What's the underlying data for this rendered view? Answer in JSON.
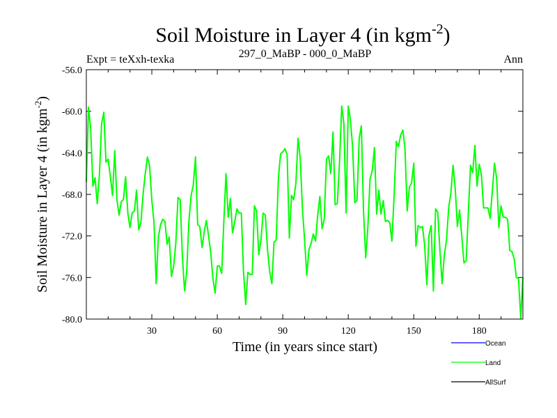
{
  "chart_data": {
    "type": "line",
    "title_main": "Soil Moisture in Layer 4 (in kgm",
    "title_sup": "-2",
    "title_close": ")",
    "subtitle_left": "Expt = teXxh-texka",
    "subtitle_center": "297_0_MaBP - 000_0_MaBP",
    "subtitle_right": "Ann",
    "xlabel": "Time (in years since start)",
    "ylabel_main": "Soil Moisture in Layer 4 (in kgm",
    "ylabel_sup": "-2",
    "ylabel_close": ")",
    "xlim": [
      0,
      200
    ],
    "ylim": [
      -80,
      -56
    ],
    "xticks": [
      30,
      60,
      90,
      120,
      150,
      180
    ],
    "xtick_labels": [
      "30",
      "60",
      "90",
      "120",
      "150",
      "180"
    ],
    "yticks": [
      -56,
      -60,
      -64,
      -68,
      -72,
      -76,
      -80
    ],
    "ytick_labels": [
      "-56.0",
      "-60.0",
      "-64.0",
      "-68.0",
      "-72.0",
      "-76.0",
      "-80.0"
    ],
    "legend_position": "bottom-right",
    "series": [
      {
        "name": "Ocean",
        "color": "#0000ff",
        "values": []
      },
      {
        "name": "Land",
        "color": "#00ff00",
        "x": [
          0,
          1,
          2,
          3,
          4,
          5,
          6,
          7,
          8,
          9,
          10,
          11,
          12,
          13,
          14,
          15,
          16,
          17,
          18,
          19,
          20,
          21,
          22,
          23,
          24,
          25,
          26,
          27,
          28,
          29,
          30,
          31,
          32,
          33,
          34,
          35,
          36,
          37,
          38,
          39,
          40,
          41,
          42,
          43,
          44,
          45,
          46,
          47,
          48,
          49,
          50,
          51,
          52,
          53,
          54,
          55,
          56,
          57,
          58,
          59,
          60,
          61,
          62,
          63,
          64,
          65,
          66,
          67,
          68,
          69,
          70,
          71,
          72,
          73,
          74,
          75,
          76,
          77,
          78,
          79,
          80,
          81,
          82,
          83,
          84,
          85,
          86,
          87,
          88,
          89,
          90,
          91,
          92,
          93,
          94,
          95,
          96,
          97,
          98,
          99,
          100,
          101,
          102,
          103,
          104,
          105,
          106,
          107,
          108,
          109,
          110,
          111,
          112,
          113,
          114,
          115,
          116,
          117,
          118,
          119,
          120,
          121,
          122,
          123,
          124,
          125,
          126,
          127,
          128,
          129,
          130,
          131,
          132,
          133,
          134,
          135,
          136,
          137,
          138,
          139,
          140,
          141,
          142,
          143,
          144,
          145,
          146,
          147,
          148,
          149,
          150,
          151,
          152,
          153,
          154,
          155,
          156,
          157,
          158,
          159,
          160,
          161,
          162,
          163,
          164,
          165,
          166,
          167,
          168,
          169,
          170,
          171,
          172,
          173,
          174,
          175,
          176,
          177,
          178,
          179,
          180,
          181,
          182,
          183,
          184,
          185,
          186,
          187,
          188,
          189,
          190,
          191,
          192,
          193,
          194,
          195,
          196,
          197,
          198,
          199,
          200
        ],
        "values": [
          -66.8,
          -59.6,
          -61.7,
          -67.2,
          -66.4,
          -68.9,
          -66.1,
          -61.2,
          -60.1,
          -64.9,
          -64.6,
          -66.3,
          -68.1,
          -63.8,
          -68.5,
          -70.0,
          -68.7,
          -68.5,
          -66.3,
          -69.8,
          -71.2,
          -69.8,
          -69.6,
          -67.6,
          -71.4,
          -70.7,
          -68.0,
          -66.0,
          -64.4,
          -65.3,
          -68.6,
          -70.7,
          -76.6,
          -72.1,
          -70.9,
          -70.4,
          -70.6,
          -72.8,
          -72.1,
          -75.9,
          -74.9,
          -72.7,
          -68.3,
          -68.5,
          -73.9,
          -77.3,
          -75.4,
          -70.6,
          -68.1,
          -67.1,
          -64.4,
          -70.9,
          -71.1,
          -73.1,
          -71.6,
          -70.5,
          -72.0,
          -73.6,
          -76.1,
          -77.5,
          -74.9,
          -74.9,
          -75.6,
          -70.6,
          -66.0,
          -70.2,
          -68.4,
          -71.7,
          -70.6,
          -69.4,
          -69.8,
          -69.8,
          -75.4,
          -78.6,
          -75.5,
          -75.7,
          -75.7,
          -69.1,
          -69.6,
          -73.8,
          -72.4,
          -69.8,
          -70.0,
          -73.3,
          -75.4,
          -76.6,
          -72.6,
          -72.4,
          -66.4,
          -64.1,
          -63.9,
          -63.6,
          -64.2,
          -72.2,
          -68.1,
          -68.5,
          -66.9,
          -62.6,
          -64.5,
          -69.4,
          -72.4,
          -75.8,
          -73.3,
          -72.7,
          -71.8,
          -72.5,
          -70.0,
          -68.2,
          -71.3,
          -70.4,
          -64.6,
          -64.3,
          -66.0,
          -62.0,
          -69.0,
          -68.9,
          -64.8,
          -59.5,
          -61.2,
          -69.8,
          -59.5,
          -60.8,
          -63.5,
          -68.8,
          -68.6,
          -62.6,
          -61.4,
          -69.6,
          -74.1,
          -71.1,
          -66.5,
          -65.7,
          -63.5,
          -69.9,
          -67.6,
          -69.9,
          -68.6,
          -70.6,
          -70.5,
          -70.7,
          -72.5,
          -68.2,
          -62.9,
          -63.4,
          -62.3,
          -61.8,
          -63.6,
          -69.6,
          -67.3,
          -66.9,
          -65.0,
          -73.0,
          -71.0,
          -71.2,
          -71.1,
          -72.9,
          -76.7,
          -71.9,
          -71.0,
          -77.3,
          -69.4,
          -69.7,
          -73.4,
          -76.6,
          -73.9,
          -72.4,
          -69.3,
          -67.9,
          -65.2,
          -67.4,
          -71.1,
          -69.5,
          -72.0,
          -74.6,
          -74.4,
          -69.9,
          -65.2,
          -65.9,
          -63.3,
          -67.2,
          -65.1,
          -66.1,
          -69.3,
          -69.3,
          -69.3,
          -70.3,
          -67.7,
          -65.0,
          -66.5,
          -71.2,
          -69.1,
          -70.2,
          -70.2,
          -70.4,
          -73.4,
          -73.5,
          -74.2,
          -76.0,
          -76.1,
          -79.9,
          -76.0
        ]
      },
      {
        "name": "AllSurf",
        "color": "#000000",
        "values": []
      }
    ]
  }
}
